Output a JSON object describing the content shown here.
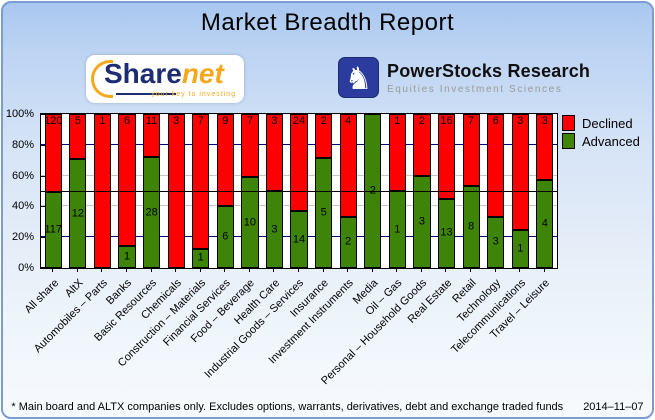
{
  "title": "Market Breadth Report",
  "logos": {
    "sharenet": {
      "word_part1": "Share",
      "word_part2": "net",
      "tagline": "your key to investing"
    },
    "powerstocks": {
      "icon": "knight-chess-icon",
      "line1": "PowerStocks  Research",
      "line2": "Equities Investment Sciences"
    }
  },
  "chart_data": {
    "type": "bar",
    "stacked": true,
    "stack_mode": "percent",
    "title": "",
    "xlabel": "",
    "ylabel": "",
    "ylim": [
      0,
      100
    ],
    "y_ticks": [
      "100%",
      "80%",
      "60%",
      "40%",
      "20%",
      "0%"
    ],
    "grid": {
      "minor_color": "#c6c6c6",
      "major_color": "#000080",
      "reference_line_pct": 50,
      "reference_line_color": "#000000"
    },
    "legend_position": "top-right",
    "categories": [
      "All share",
      "AltX",
      "Automobiles – Parts",
      "Banks",
      "Basic Resources",
      "Chemicals",
      "Construction – Materials",
      "Financial Services",
      "Food – Beverage",
      "Health Care",
      "Industrial Goods – Services",
      "Insurance",
      "Investment Instruments",
      "Media",
      "Oil – Gas",
      "Personal – Household Goods",
      "Real Estate",
      "Retail",
      "Technology",
      "Telecommunications",
      "Travel – Leisure"
    ],
    "series": [
      {
        "name": "Declined",
        "color": "#ff0000",
        "values": [
          120,
          5,
          1,
          6,
          11,
          3,
          7,
          9,
          7,
          3,
          24,
          2,
          4,
          0,
          1,
          2,
          16,
          7,
          6,
          3,
          3
        ]
      },
      {
        "name": "Advanced",
        "color": "#3d8408",
        "values": [
          117,
          12,
          0,
          1,
          28,
          0,
          1,
          6,
          10,
          3,
          14,
          5,
          2,
          2,
          1,
          3,
          13,
          8,
          3,
          1,
          4
        ]
      }
    ]
  },
  "footer": {
    "note": "* Main board and ALTX companies only. Excludes options, warrants, derivatives, debt and exchange traded funds",
    "date": "2014–11–07"
  }
}
